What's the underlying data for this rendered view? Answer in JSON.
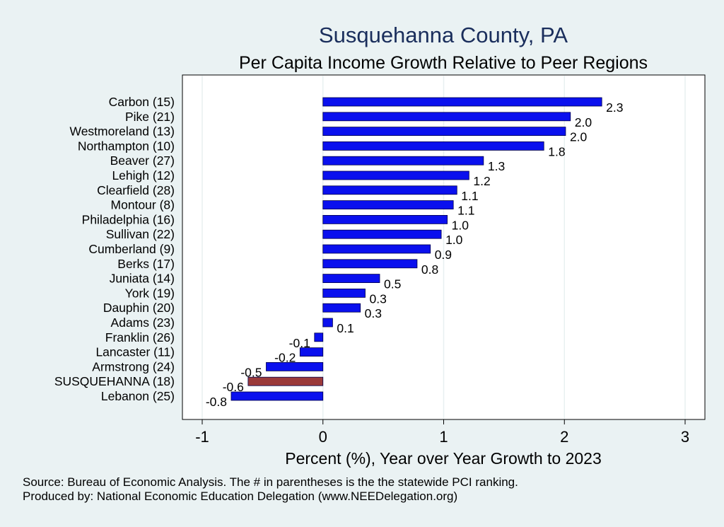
{
  "chart_data": {
    "type": "bar",
    "orientation": "horizontal",
    "title": "Susquehanna County, PA",
    "subtitle": "Per Capita Income Growth Relative to Peer Regions",
    "xlabel": "Percent (%), Year over Year Growth to 2023",
    "ylabel": "",
    "xlim": [
      -1,
      3
    ],
    "xticks": [
      -1,
      0,
      1,
      2,
      3
    ],
    "xtick_labels": [
      "-1",
      "0",
      "1",
      "2",
      "3"
    ],
    "grid": true,
    "categories": [
      "Carbon (15)",
      "Pike (21)",
      "Westmoreland (13)",
      "Northampton (10)",
      "Beaver (27)",
      "Lehigh (12)",
      "Clearfield (28)",
      "Montour  (8)",
      "Philadelphia (16)",
      "Sullivan (22)",
      "Cumberland  (9)",
      "Berks (17)",
      "Juniata (14)",
      "York (19)",
      "Dauphin (20)",
      "Adams (23)",
      "Franklin (26)",
      "Lancaster (11)",
      "Armstrong (24)",
      "SUSQUEHANNA (18)",
      "Lebanon (25)"
    ],
    "values": [
      2.31,
      2.05,
      2.01,
      1.83,
      1.33,
      1.21,
      1.11,
      1.08,
      1.03,
      0.98,
      0.89,
      0.78,
      0.47,
      0.35,
      0.31,
      0.08,
      -0.07,
      -0.19,
      -0.47,
      -0.62,
      -0.76
    ],
    "value_labels": [
      "2.3",
      "2.0",
      "2.0",
      "1.8",
      "1.3",
      "1.2",
      "1.1",
      "1.1",
      "1.0",
      "1.0",
      "0.9",
      "0.8",
      "0.5",
      "0.3",
      "0.3",
      "0.1",
      "-0.1",
      "-0.2",
      "-0.5",
      "-0.6",
      "-0.8"
    ],
    "highlight_index": 19,
    "colors": {
      "bar": "#0a10ee",
      "highlight": "#9b3a3a",
      "grid": "#e8f0f1",
      "background": "#eaf2f3",
      "plot": "#ffffff"
    }
  },
  "footer": {
    "source": "Source: Bureau of Economic Analysis. The # in parentheses is the the statewide PCI ranking.",
    "produced_by": "Produced by: National Economic Education Delegation (www.NEEDelegation.org)"
  }
}
